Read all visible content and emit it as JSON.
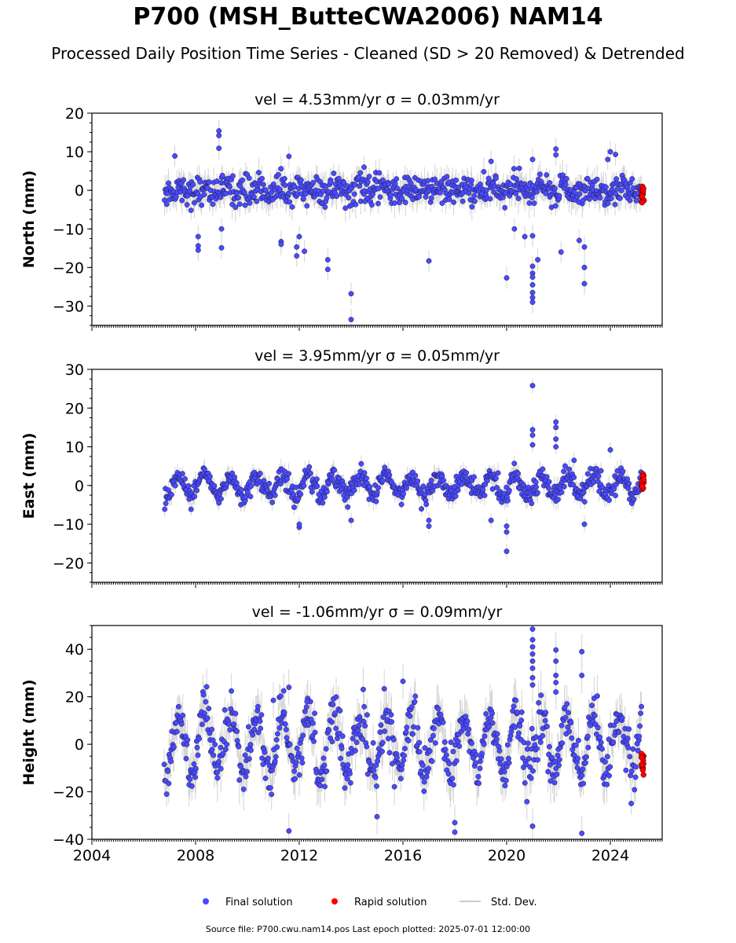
{
  "title": "P700 (MSH_ButteCWA2006) NAM14",
  "subtitle": "Processed Daily Position Time Series - Cleaned (SD > 20 Removed) & Detrended",
  "footer": "Source file: P700.cwu.nam14.pos  Last epoch plotted: 2025-07-01 12:00:00",
  "colors": {
    "final": "#4a4aff",
    "rapid": "#ff0000",
    "stddev": "#b0b0b0"
  },
  "chart_data": [
    {
      "type": "scatter",
      "panel": "north",
      "title": "vel = 4.53mm/yr   σ = 0.03mm/yr",
      "ylabel": "North (mm)",
      "xlim": [
        2004.0,
        2026.0
      ],
      "ylim": [
        -35,
        20
      ],
      "yticks": [
        20,
        10,
        0,
        -10,
        -20,
        -30
      ],
      "xticks": [
        2004,
        2008,
        2012,
        2016,
        2020,
        2024
      ],
      "x_start": 2006.8,
      "x_end": 2025.2,
      "noise_sd": 1.9,
      "annual_amp": 0.6,
      "rapid": {
        "x_start": 2025.2,
        "x_end": 2025.3,
        "center": -1.0,
        "spread": 2.5
      },
      "outliers": [
        [
          2007.2,
          8.9
        ],
        [
          2008.9,
          15.4
        ],
        [
          2008.9,
          14.2
        ],
        [
          2008.9,
          10.9
        ],
        [
          2009.0,
          -10
        ],
        [
          2009.0,
          -14.9
        ],
        [
          2008.1,
          -14.4
        ],
        [
          2008.1,
          -12
        ],
        [
          2008.1,
          -15.5
        ],
        [
          2011.3,
          -13.3
        ],
        [
          2011.3,
          -14
        ],
        [
          2011.6,
          8.8
        ],
        [
          2011.9,
          -14.7
        ],
        [
          2011.9,
          -17
        ],
        [
          2012.2,
          -15.8
        ],
        [
          2012.0,
          -12
        ],
        [
          2013.1,
          -18
        ],
        [
          2013.1,
          -20.5
        ],
        [
          2014.0,
          -26.8
        ],
        [
          2014.0,
          -33.5
        ],
        [
          2014.5,
          6
        ],
        [
          2017.0,
          -18.3
        ],
        [
          2019.4,
          7.5
        ],
        [
          2020.0,
          -22.7
        ],
        [
          2021.0,
          -19.7
        ],
        [
          2021.0,
          -21.5
        ],
        [
          2021.0,
          -22.5
        ],
        [
          2021.0,
          -24.5
        ],
        [
          2021.0,
          -26.5
        ],
        [
          2021.0,
          -27.8
        ],
        [
          2021.0,
          -29
        ],
        [
          2021.0,
          -11.8
        ],
        [
          2021.0,
          8
        ],
        [
          2021.2,
          -18
        ],
        [
          2021.9,
          10.7
        ],
        [
          2021.9,
          9.2
        ],
        [
          2022.1,
          -16
        ],
        [
          2022.8,
          -13
        ],
        [
          2023.0,
          -20
        ],
        [
          2023.0,
          -24.2
        ],
        [
          2023.0,
          -14.7
        ],
        [
          2024.0,
          10
        ],
        [
          2024.2,
          9.3
        ],
        [
          2023.9,
          8
        ],
        [
          2020.7,
          -12
        ],
        [
          2020.3,
          -10
        ]
      ]
    },
    {
      "type": "scatter",
      "panel": "east",
      "title": "vel = 3.95mm/yr   σ = 0.05mm/yr",
      "ylabel": "East (mm)",
      "xlim": [
        2004.0,
        2026.0
      ],
      "ylim": [
        -25,
        30
      ],
      "yticks": [
        30,
        20,
        10,
        0,
        -10,
        -20
      ],
      "xticks": [
        2004,
        2008,
        2012,
        2016,
        2020,
        2024
      ],
      "x_start": 2006.8,
      "x_end": 2025.2,
      "noise_sd": 1.3,
      "annual_amp": 2.6,
      "rapid": {
        "x_start": 2025.2,
        "x_end": 2025.3,
        "center": 1.0,
        "spread": 2.0
      },
      "outliers": [
        [
          2021.0,
          25.8
        ],
        [
          2021.0,
          14.4
        ],
        [
          2021.0,
          13
        ],
        [
          2021.0,
          10.5
        ],
        [
          2021.9,
          16.4
        ],
        [
          2021.9,
          15
        ],
        [
          2021.9,
          12
        ],
        [
          2021.9,
          10
        ],
        [
          2020.0,
          -17
        ],
        [
          2020.0,
          -10.5
        ],
        [
          2020.0,
          -12
        ],
        [
          2017.0,
          -10.5
        ],
        [
          2017.0,
          -9
        ],
        [
          2012.0,
          -10.8
        ],
        [
          2012.0,
          -10
        ],
        [
          2014.0,
          -9
        ],
        [
          2024.0,
          9.2
        ],
        [
          2023.0,
          -10
        ],
        [
          2019.4,
          -9
        ],
        [
          2022.6,
          6.5
        ],
        [
          2008.9,
          -4.5
        ]
      ]
    },
    {
      "type": "scatter",
      "panel": "height",
      "title": "vel = -1.06mm/yr   σ = 0.09mm/yr",
      "ylabel": "Height (mm)",
      "xlim": [
        2004.0,
        2026.0
      ],
      "ylim": [
        -40,
        50
      ],
      "yticks": [
        40,
        20,
        0,
        -20,
        -40
      ],
      "xticks": [
        2004,
        2008,
        2012,
        2016,
        2020,
        2024
      ],
      "xticklabels": [
        "2004",
        "2008",
        "2012",
        "2016",
        "2020",
        "2024"
      ],
      "x_start": 2006.8,
      "x_end": 2025.2,
      "noise_sd": 5.0,
      "annual_amp": 12.0,
      "rapid": {
        "x_start": 2025.2,
        "x_end": 2025.3,
        "center": -8.0,
        "spread": 5.0
      },
      "outliers": [
        [
          2021.0,
          48.5
        ],
        [
          2021.0,
          44
        ],
        [
          2021.0,
          41
        ],
        [
          2021.0,
          38
        ],
        [
          2021.0,
          35
        ],
        [
          2021.0,
          32
        ],
        [
          2021.0,
          28
        ],
        [
          2021.0,
          25
        ],
        [
          2021.0,
          -34.5
        ],
        [
          2021.9,
          39.7
        ],
        [
          2021.9,
          35
        ],
        [
          2021.9,
          29
        ],
        [
          2021.9,
          26
        ],
        [
          2021.9,
          22
        ],
        [
          2022.9,
          39
        ],
        [
          2022.9,
          29
        ],
        [
          2022.9,
          -37.5
        ],
        [
          2016.0,
          26.5
        ],
        [
          2011.6,
          24
        ],
        [
          2011.4,
          22.5
        ],
        [
          2011.0,
          18.5
        ],
        [
          2012.3,
          18
        ],
        [
          2018.0,
          -37
        ],
        [
          2018.0,
          -33
        ],
        [
          2011.6,
          -36.5
        ],
        [
          2015.0,
          -30.5
        ]
      ]
    }
  ],
  "legend": {
    "placement": "bottom",
    "final": "Final solution",
    "rapid": "Rapid solution",
    "stddev": "Std. Dev."
  }
}
